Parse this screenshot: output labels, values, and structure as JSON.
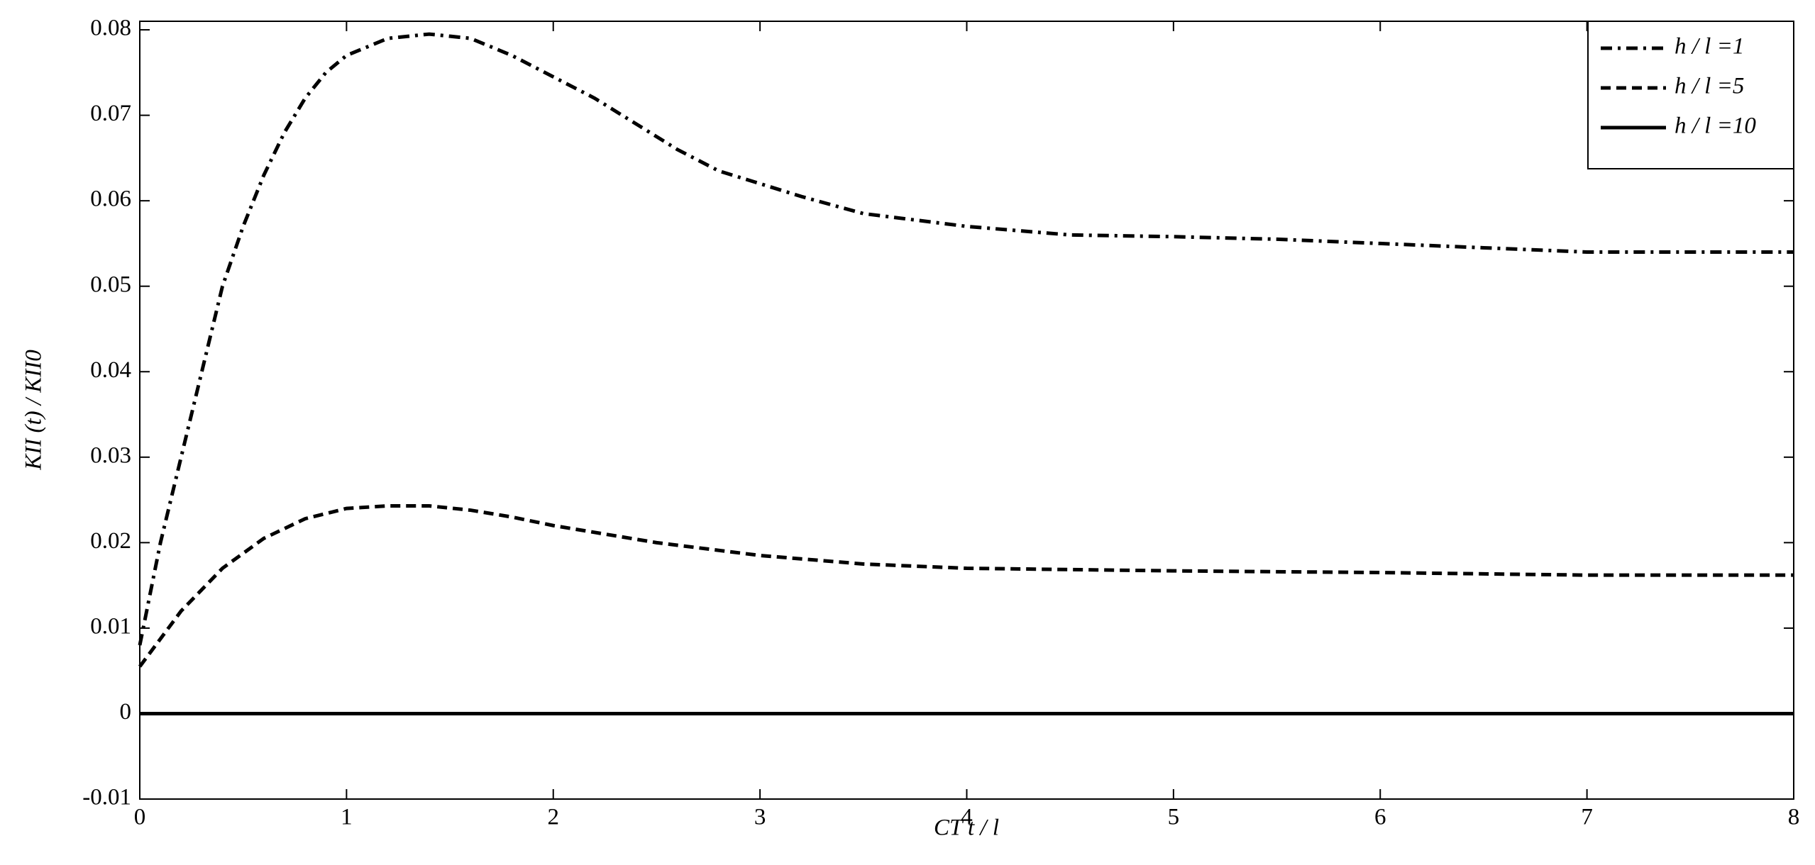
{
  "chart_data": {
    "type": "line",
    "xlabel": "CT t / l",
    "ylabel": "KII (t) / KII0",
    "xlim": [
      0,
      8
    ],
    "xticks": [
      0,
      1,
      2,
      3,
      4,
      5,
      6,
      7,
      8
    ],
    "ylim": [
      -0.01,
      0.081
    ],
    "yticks": [
      -0.01,
      0,
      0.01,
      0.02,
      0.03,
      0.04,
      0.05,
      0.06,
      0.07,
      0.08
    ],
    "legend": "upper right",
    "series": [
      {
        "name": "h / l =1",
        "color": "#000000",
        "style": "dashdot",
        "x": [
          0,
          0.1,
          0.2,
          0.3,
          0.4,
          0.5,
          0.6,
          0.7,
          0.8,
          0.9,
          1.0,
          1.2,
          1.4,
          1.6,
          1.8,
          2.0,
          2.2,
          2.4,
          2.6,
          2.8,
          3.0,
          3.2,
          3.5,
          4,
          4.5,
          5,
          5.5,
          6,
          6.5,
          7,
          8
        ],
        "values": [
          0.008,
          0.02,
          0.03,
          0.04,
          0.05,
          0.057,
          0.063,
          0.068,
          0.072,
          0.075,
          0.077,
          0.079,
          0.0795,
          0.079,
          0.077,
          0.0745,
          0.072,
          0.069,
          0.066,
          0.0635,
          0.062,
          0.0605,
          0.0585,
          0.057,
          0.056,
          0.0558,
          0.0555,
          0.055,
          0.0545,
          0.054,
          0.054
        ]
      },
      {
        "name": "h / l =5",
        "color": "#000000",
        "style": "dash",
        "x": [
          0,
          0.2,
          0.4,
          0.6,
          0.8,
          1.0,
          1.2,
          1.4,
          1.6,
          1.8,
          2.0,
          2.5,
          3,
          3.5,
          4,
          5,
          6,
          7,
          8
        ],
        "values": [
          0.0055,
          0.012,
          0.017,
          0.0205,
          0.0228,
          0.024,
          0.0243,
          0.0243,
          0.0238,
          0.023,
          0.022,
          0.02,
          0.0185,
          0.0175,
          0.017,
          0.0167,
          0.0165,
          0.0162,
          0.0162
        ]
      },
      {
        "name": "h / l =10",
        "color": "#000000",
        "style": "solid",
        "x": [
          0,
          8
        ],
        "values": [
          0,
          0
        ]
      }
    ]
  }
}
